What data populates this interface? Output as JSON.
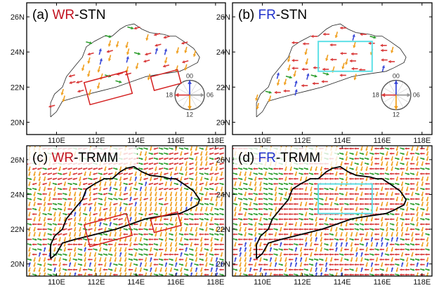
{
  "colors": {
    "wr": "#c1121f",
    "fr": "#2233cc",
    "c00": "#3b4ad8",
    "c06": "#999999",
    "c12": "#f0a020",
    "c18": "#d93a3a",
    "green": "#2e9e2e",
    "cyan": "#5ee0e6"
  },
  "panels": [
    {
      "id": "a",
      "prefix": "(a) ",
      "tag": "WR",
      "suffix": "-STN",
      "tag_color": "wr",
      "type": "stn"
    },
    {
      "id": "b",
      "prefix": "(b) ",
      "tag": "FR",
      "suffix": "-STN",
      "tag_color": "fr",
      "type": "stn"
    },
    {
      "id": "c",
      "prefix": "(c) ",
      "tag": "WR",
      "suffix": "-TRMM",
      "tag_color": "wr",
      "type": "trmm"
    },
    {
      "id": "d",
      "prefix": "(d) ",
      "tag": "FR",
      "suffix": "-TRMM",
      "tag_color": "fr",
      "type": "trmm"
    }
  ],
  "axes": {
    "x_ticks": [
      "110E",
      "112E",
      "114E",
      "116E",
      "118E"
    ],
    "y_ticks": [
      "26N",
      "24N",
      "22N",
      "20N"
    ],
    "lon_range": [
      108.5,
      118.5
    ],
    "lat_range": [
      19.3,
      26.8
    ]
  },
  "clock_legend": {
    "top": "00",
    "right": "06",
    "bottom": "12",
    "left": "18"
  },
  "region_boxes": {
    "wr": [
      {
        "lon": [
          111.5,
          113.7
        ],
        "lat": [
          21.3,
          22.6
        ],
        "rotate": -15
      },
      {
        "lon": [
          114.8,
          116.2
        ],
        "lat": [
          22.0,
          22.8
        ],
        "rotate": -15
      }
    ],
    "fr": [
      {
        "lon": [
          112.8,
          115.5
        ],
        "lat": [
          22.9,
          24.6
        ]
      }
    ]
  }
}
